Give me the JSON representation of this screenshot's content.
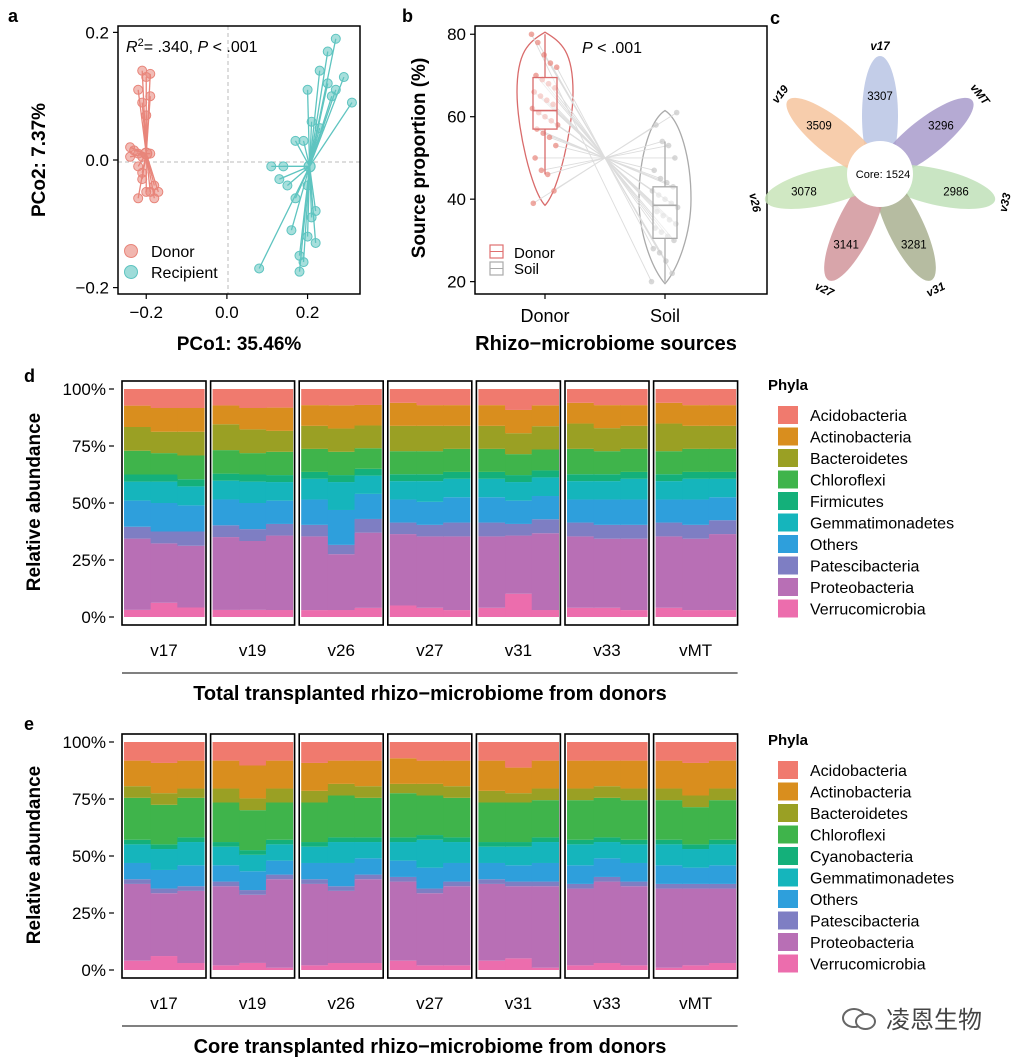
{
  "panel_labels": {
    "a": "a",
    "b": "b",
    "c": "c",
    "d": "d",
    "e": "e"
  },
  "colors": {
    "donor": "#E8857A",
    "recipient": "#5EC4C0",
    "phyla": {
      "Acidobacteria": "#F07A6E",
      "Actinobacteria": "#D98E1E",
      "Bacteroidetes": "#9AA024",
      "Chloroflexi": "#3FB44B",
      "Firmicutes": "#14B07A",
      "Cyanobacteria": "#14B07A",
      "Gemmatimonadetes": "#15B5BC",
      "Others": "#2E9FDC",
      "Patescibacteria": "#7E7EC3",
      "Proteobacteria": "#B86FB5",
      "Verrucomicrobia": "#EC6DAD"
    }
  },
  "watermark": "凌恩生物",
  "chart_data": [
    {
      "id": "a",
      "type": "scatter",
      "annotation_r2": "= .340,",
      "annotation_r2_symbol": "R",
      "annotation_r2_sup": "2",
      "annotation_p": "P",
      "annotation_p_value": " < .001",
      "xlabel": "PCo1: 35.46%",
      "ylabel": "PCo2: 7.37%",
      "xlim": [
        -0.27,
        0.33
      ],
      "ylim": [
        -0.21,
        0.21
      ],
      "xticks": [
        -0.2,
        0.0,
        0.2
      ],
      "xtick_labels": [
        "−0.2",
        "0.0",
        "0.2"
      ],
      "yticks": [
        -0.2,
        0.0,
        0.2
      ],
      "ytick_labels": [
        "−0.2",
        "0.0",
        "0.2"
      ],
      "legend": [
        "Donor",
        "Recipient"
      ],
      "series": [
        {
          "name": "Donor",
          "centroid": [
            -0.2,
            0.01
          ],
          "points": [
            [
              -0.21,
              0.14
            ],
            [
              -0.2,
              0.13
            ],
            [
              -0.19,
              0.135
            ],
            [
              -0.22,
              0.11
            ],
            [
              -0.19,
              0.1
            ],
            [
              -0.21,
              0.09
            ],
            [
              -0.2,
              0.07
            ],
            [
              -0.24,
              0.02
            ],
            [
              -0.23,
              0.015
            ],
            [
              -0.22,
              0.01
            ],
            [
              -0.24,
              0.005
            ],
            [
              -0.21,
              0.005
            ],
            [
              -0.19,
              0.01
            ],
            [
              -0.22,
              -0.01
            ],
            [
              -0.21,
              -0.02
            ],
            [
              -0.18,
              -0.04
            ],
            [
              -0.19,
              -0.05
            ],
            [
              -0.22,
              -0.06
            ],
            [
              -0.2,
              -0.05
            ],
            [
              -0.21,
              -0.03
            ],
            [
              -0.17,
              -0.05
            ],
            [
              -0.18,
              -0.06
            ]
          ]
        },
        {
          "name": "Recipient",
          "centroid": [
            0.205,
            -0.01
          ],
          "points": [
            [
              0.27,
              0.19
            ],
            [
              0.25,
              0.17
            ],
            [
              0.23,
              0.14
            ],
            [
              0.29,
              0.13
            ],
            [
              0.25,
              0.12
            ],
            [
              0.27,
              0.11
            ],
            [
              0.2,
              0.11
            ],
            [
              0.26,
              0.1
            ],
            [
              0.31,
              0.09
            ],
            [
              0.21,
              0.06
            ],
            [
              0.23,
              0.05
            ],
            [
              0.17,
              0.03
            ],
            [
              0.19,
              0.03
            ],
            [
              0.14,
              -0.01
            ],
            [
              0.11,
              -0.01
            ],
            [
              0.15,
              -0.04
            ],
            [
              0.2,
              -0.04
            ],
            [
              0.17,
              -0.06
            ],
            [
              0.22,
              -0.08
            ],
            [
              0.16,
              -0.11
            ],
            [
              0.2,
              -0.12
            ],
            [
              0.22,
              -0.13
            ],
            [
              0.18,
              -0.15
            ],
            [
              0.19,
              -0.16
            ],
            [
              0.18,
              -0.175
            ],
            [
              0.08,
              -0.17
            ],
            [
              0.21,
              -0.09
            ],
            [
              0.13,
              -0.03
            ]
          ]
        }
      ]
    },
    {
      "id": "b",
      "type": "violin",
      "annotation": "P",
      "annotation_value": " < .001",
      "xlabel": "Rhizo−microbiome sources",
      "ylabel": "Source proportion (%)",
      "categories": [
        "Donor",
        "Soil"
      ],
      "ylim": [
        17,
        82
      ],
      "yticks": [
        20,
        40,
        60,
        80
      ],
      "legend": [
        "Donor",
        "Soil"
      ],
      "box": [
        {
          "name": "Donor",
          "q1": 57,
          "median": 61.5,
          "q3": 69.5,
          "whisker_low": 46,
          "whisker_high": 80
        },
        {
          "name": "Soil",
          "q1": 30.5,
          "median": 38.5,
          "q3": 43,
          "whisker_low": 20,
          "whisker_high": 54
        }
      ],
      "violin_range": [
        {
          "name": "Donor",
          "min": 38.5,
          "max": 80.5
        },
        {
          "name": "Soil",
          "min": 19.5,
          "max": 61.5
        }
      ],
      "paired_donor": [
        80,
        78,
        75,
        73,
        72,
        70,
        69,
        68,
        67,
        66,
        65,
        64,
        63,
        62,
        61,
        60,
        59,
        58,
        57,
        56,
        55,
        53,
        50,
        47,
        46,
        42,
        39
      ],
      "paired_soil": [
        20,
        22,
        25,
        27,
        28,
        30,
        31,
        32,
        33,
        34,
        35,
        36,
        37,
        38,
        39,
        40,
        41,
        42,
        43,
        44,
        45,
        47,
        50,
        53,
        54,
        58,
        61
      ]
    },
    {
      "id": "c",
      "type": "flower",
      "core_label": "Core: 1524",
      "petals": [
        {
          "name": "v17",
          "value": "3307"
        },
        {
          "name": "vMT",
          "value": "3296"
        },
        {
          "name": "v33",
          "value": "2986"
        },
        {
          "name": "v31",
          "value": "3281"
        },
        {
          "name": "v27",
          "value": "3141"
        },
        {
          "name": "v26",
          "value": "3078"
        },
        {
          "name": "v19",
          "value": "3509"
        }
      ],
      "petal_colors": [
        "#B8C4E4",
        "#A89BCB",
        "#BFE0B8",
        "#A9B090",
        "#D1959B",
        "#C8E4B8",
        "#F6C49E"
      ]
    },
    {
      "id": "d",
      "type": "bar",
      "stacked": true,
      "normalized": true,
      "title": "Total transplanted rhizo−microbiome from donors",
      "ylabel": "Relative abundance",
      "yticks": [
        "0%",
        "25%",
        "50%",
        "75%",
        "100%"
      ],
      "legend_title": "Phyla",
      "categories": [
        "v17",
        "v19",
        "v26",
        "v27",
        "v31",
        "v33",
        "vMT"
      ],
      "phyla": [
        "Acidobacteria",
        "Actinobacteria",
        "Bacteroidetes",
        "Chloroflexi",
        "Firmicutes",
        "Gemmatimonadetes",
        "Others",
        "Patescibacteria",
        "Proteobacteria",
        "Verrucomicrobia"
      ],
      "samples_per_group": 3,
      "values": [
        [
          [
            7,
            9,
            10,
            10,
            3,
            8,
            11,
            5,
            30,
            3
          ],
          [
            8,
            10,
            9,
            9,
            3,
            9,
            12,
            5,
            25,
            6
          ],
          [
            8,
            10,
            10,
            10,
            3,
            8,
            11,
            6,
            26,
            4
          ]
        ],
        [
          [
            7,
            8,
            11,
            10,
            3,
            8,
            11,
            5,
            31,
            3
          ],
          [
            8,
            9,
            10,
            9,
            3,
            9,
            11,
            5,
            29,
            3
          ],
          [
            8,
            10,
            9,
            10,
            3,
            8,
            10,
            5,
            32,
            3
          ]
        ],
        [
          [
            7,
            9,
            10,
            10,
            3,
            9,
            11,
            5,
            32,
            3
          ],
          [
            7,
            10,
            10,
            10,
            3,
            12,
            15,
            4,
            24,
            3
          ],
          [
            7,
            9,
            10,
            9,
            3,
            8,
            11,
            6,
            33,
            4
          ]
        ],
        [
          [
            6,
            10,
            11,
            10,
            3,
            8,
            10,
            5,
            31,
            5
          ],
          [
            7,
            9,
            11,
            10,
            3,
            9,
            10,
            5,
            31,
            4
          ],
          [
            7,
            9,
            10,
            10,
            3,
            8,
            11,
            6,
            32,
            3
          ]
        ],
        [
          [
            7,
            9,
            10,
            10,
            3,
            8,
            11,
            6,
            31,
            4
          ],
          [
            9,
            10,
            9,
            9,
            3,
            8,
            10,
            5,
            25,
            10
          ],
          [
            7,
            9,
            10,
            9,
            3,
            8,
            10,
            6,
            33,
            3
          ]
        ],
        [
          [
            6,
            9,
            11,
            11,
            3,
            8,
            10,
            6,
            31,
            4
          ],
          [
            7,
            10,
            10,
            10,
            3,
            8,
            11,
            6,
            30,
            4
          ],
          [
            7,
            9,
            10,
            10,
            3,
            9,
            11,
            6,
            31,
            3
          ]
        ],
        [
          [
            6,
            9,
            12,
            10,
            3,
            8,
            10,
            6,
            31,
            4
          ],
          [
            7,
            9,
            10,
            10,
            3,
            9,
            11,
            6,
            31,
            3
          ],
          [
            7,
            9,
            10,
            10,
            3,
            8,
            10,
            6,
            33,
            3
          ]
        ]
      ]
    },
    {
      "id": "e",
      "type": "bar",
      "stacked": true,
      "normalized": true,
      "title": "Core transplanted rhizo−microbiome from donors",
      "ylabel": "Relative abundance",
      "yticks": [
        "0%",
        "25%",
        "50%",
        "75%",
        "100%"
      ],
      "legend_title": "Phyla",
      "categories": [
        "v17",
        "v19",
        "v26",
        "v27",
        "v31",
        "v33",
        "vMT"
      ],
      "phyla": [
        "Acidobacteria",
        "Actinobacteria",
        "Bacteroidetes",
        "Chloroflexi",
        "Cyanobacteria",
        "Gemmatimonadetes",
        "Others",
        "Patescibacteria",
        "Proteobacteria",
        "Verrucomicrobia"
      ],
      "samples_per_group": 3,
      "values": [
        [
          [
            8,
            11,
            5,
            18,
            2,
            8,
            7,
            2,
            33,
            4
          ],
          [
            9,
            13,
            5,
            17,
            2,
            9,
            8,
            2,
            27,
            6
          ],
          [
            8,
            12,
            4,
            17,
            2,
            10,
            9,
            2,
            31,
            3
          ]
        ],
        [
          [
            8,
            12,
            6,
            17,
            2,
            8,
            7,
            2,
            34,
            2
          ],
          [
            10,
            14,
            5,
            17,
            2,
            7,
            8,
            2,
            29,
            3
          ],
          [
            8,
            12,
            6,
            16,
            2,
            7,
            6,
            2,
            38,
            1
          ]
        ],
        [
          [
            9,
            12,
            5,
            17,
            2,
            7,
            7,
            2,
            35,
            2
          ],
          [
            8,
            10,
            5,
            18,
            2,
            9,
            10,
            2,
            31,
            3
          ],
          [
            8,
            11,
            5,
            17,
            2,
            7,
            7,
            2,
            36,
            3
          ]
        ],
        [
          [
            7,
            11,
            4,
            19,
            2,
            8,
            7,
            2,
            34,
            4
          ],
          [
            8,
            10,
            5,
            17,
            2,
            12,
            9,
            2,
            31,
            2
          ],
          [
            8,
            11,
            5,
            17,
            2,
            9,
            8,
            2,
            34,
            2
          ]
        ],
        [
          [
            8,
            13,
            5,
            17,
            2,
            7,
            7,
            2,
            33,
            4
          ],
          [
            11,
            11,
            4,
            17,
            2,
            8,
            7,
            2,
            31,
            5
          ],
          [
            8,
            12,
            5,
            16,
            2,
            9,
            8,
            2,
            35,
            1
          ]
        ],
        [
          [
            8,
            12,
            5,
            17,
            2,
            9,
            8,
            2,
            33,
            2
          ],
          [
            8,
            11,
            5,
            17,
            2,
            7,
            8,
            2,
            35,
            3
          ],
          [
            8,
            12,
            5,
            17,
            2,
            8,
            8,
            2,
            34,
            2
          ]
        ],
        [
          [
            8,
            12,
            5,
            17,
            2,
            9,
            8,
            2,
            34,
            1
          ],
          [
            9,
            14,
            5,
            16,
            2,
            8,
            7,
            2,
            33,
            2
          ],
          [
            8,
            12,
            5,
            17,
            2,
            9,
            8,
            2,
            32,
            3
          ]
        ]
      ]
    }
  ]
}
